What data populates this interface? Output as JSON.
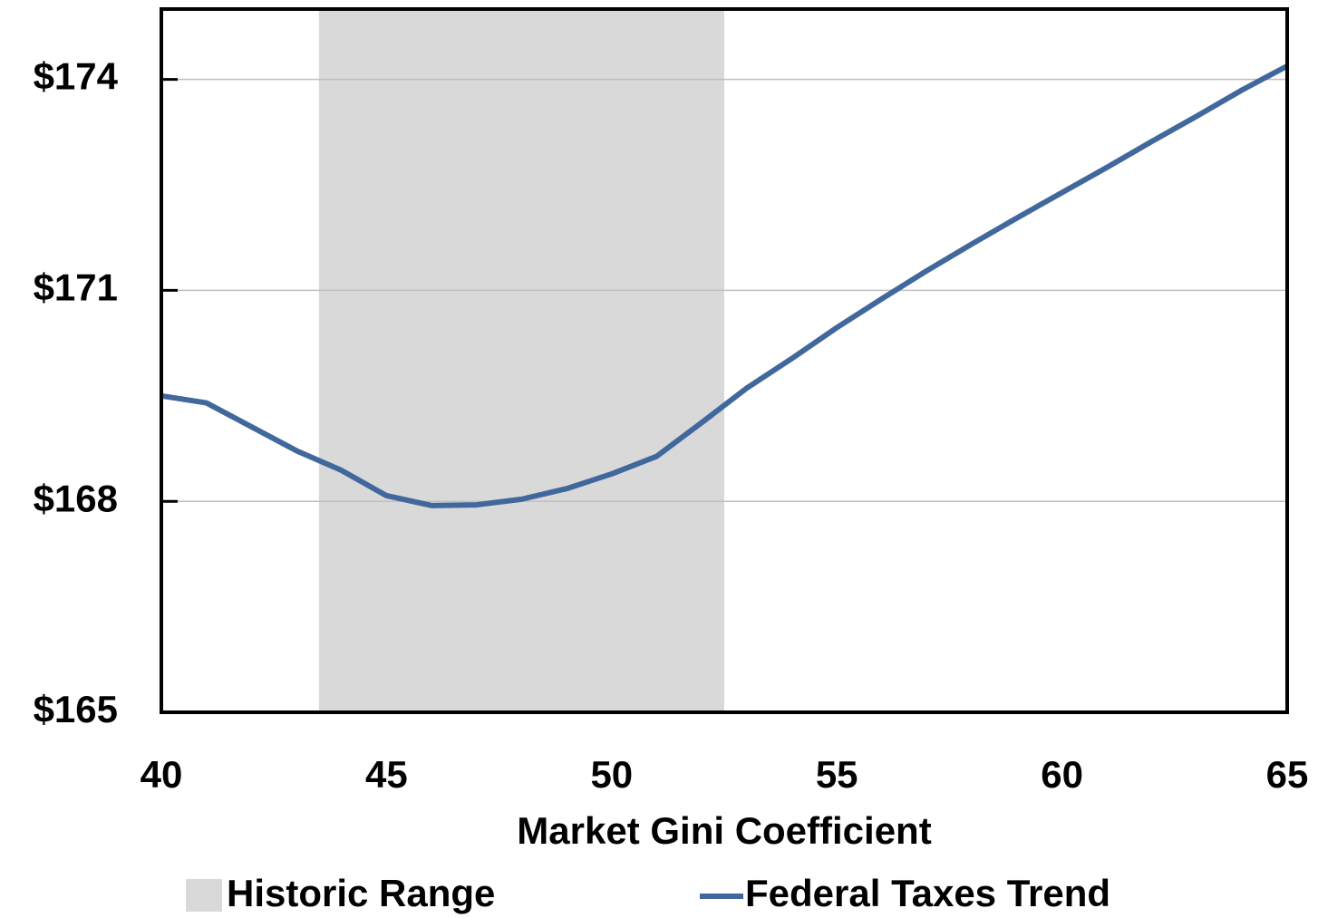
{
  "chart_data": {
    "type": "line",
    "x_label": "Market Gini Coefficient",
    "x": [
      40,
      41,
      42,
      43,
      44,
      45,
      46,
      47,
      48,
      49,
      50,
      51,
      52,
      53,
      54,
      55,
      56,
      57,
      58,
      59,
      60,
      61,
      62,
      63,
      64,
      65
    ],
    "series": [
      {
        "name": "Federal Taxes Trend",
        "color": "#41689c",
        "values": [
          169.5,
          169.4,
          169.06,
          168.72,
          168.44,
          168.08,
          167.94,
          167.95,
          168.03,
          168.18,
          168.39,
          168.64,
          169.12,
          169.61,
          170.03,
          170.47,
          170.88,
          171.28,
          171.66,
          172.03,
          172.39,
          172.75,
          173.12,
          173.48,
          173.85,
          174.19
        ]
      }
    ],
    "shaded_range": {
      "name": "Historic Range",
      "x": [
        43.5,
        52.5
      ],
      "color": "#d9d9d9"
    },
    "xlim": [
      40,
      65
    ],
    "xticks": [
      40,
      45,
      50,
      55,
      60,
      65
    ],
    "ylim": [
      165,
      175
    ],
    "yticks": [
      {
        "value": 165,
        "label": "$165"
      },
      {
        "value": 168,
        "label": "$168"
      },
      {
        "value": 171,
        "label": "$171"
      },
      {
        "value": 174,
        "label": "$174"
      }
    ],
    "grid": true
  }
}
